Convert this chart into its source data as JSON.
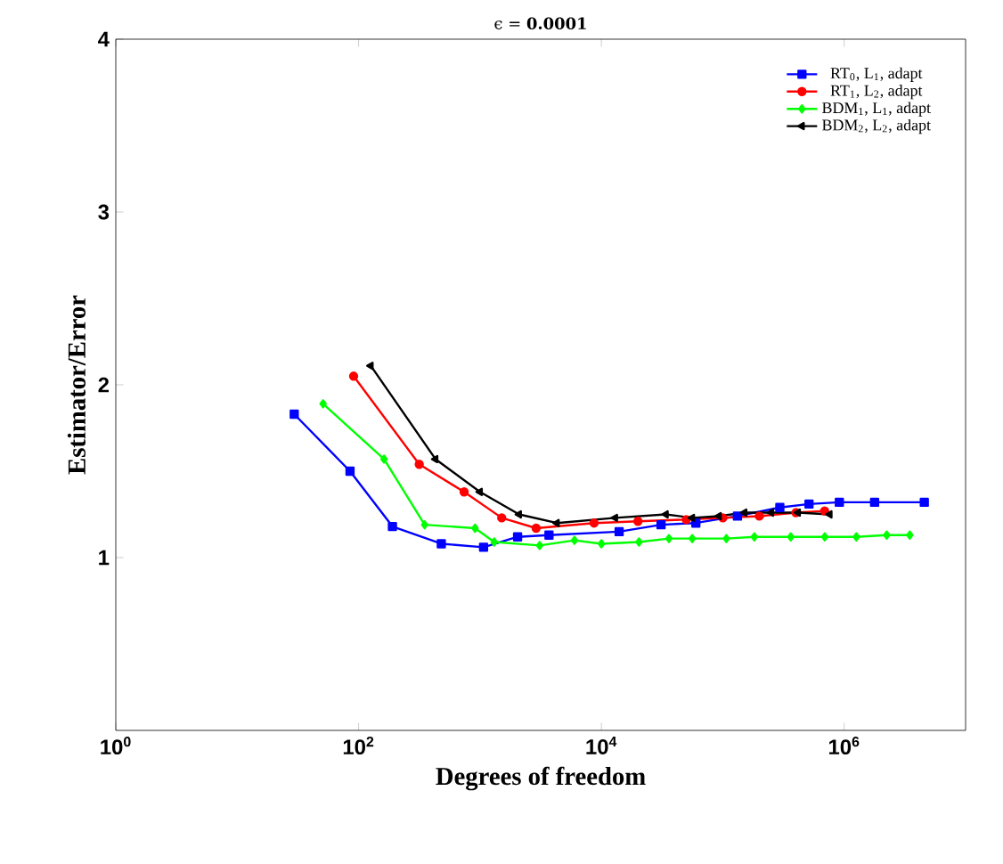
{
  "chart_data": {
    "type": "line",
    "title": "ϵ = **0.0001**",
    "xlabel": "Degrees of freedom",
    "ylabel": "Estimator/Error",
    "log": "x",
    "xlim": [
      1,
      10000000
    ],
    "ylim": [
      0,
      4
    ],
    "xticks": [
      {
        "value": 1,
        "label": "10$^{0}$"
      },
      {
        "value": 100,
        "label": "10$^{2}$"
      },
      {
        "value": 10000,
        "label": "10$^{4}$"
      },
      {
        "value": 1000000,
        "label": "10$^{6}$"
      }
    ],
    "yticks": [
      1,
      2,
      3,
      4
    ],
    "grid": false,
    "legend": "top right",
    "line_style": "solid",
    "series": [
      {
        "name": "RT$_{0}$, L$_{1}$, adapt",
        "color": "#0000ff",
        "marker": "square",
        "x": [
          29.5,
          85,
          190,
          480,
          1070,
          2040,
          3700,
          14000,
          31000,
          60000,
          132000,
          295000,
          513000,
          912000,
          1780000,
          4570000
        ],
        "values": [
          1.83,
          1.5,
          1.18,
          1.08,
          1.06,
          1.12,
          1.13,
          1.15,
          1.19,
          1.2,
          1.24,
          1.29,
          1.31,
          1.32,
          1.32,
          1.32
        ]
      },
      {
        "name": "RT$_{1}$, L$_{2}$, adapt",
        "color": "#ff0000",
        "marker": "circle",
        "x": [
          91,
          316,
          740,
          1510,
          2900,
          8700,
          20000,
          50000,
          100000,
          200000,
          400000,
          690000
        ],
        "values": [
          2.05,
          1.54,
          1.38,
          1.23,
          1.17,
          1.2,
          1.21,
          1.22,
          1.23,
          1.24,
          1.26,
          1.27
        ]
      },
      {
        "name": "BDM$_{1}$, L$_{1}$, adapt",
        "color": "#00ff00",
        "marker": "diamond",
        "x": [
          51,
          162,
          350,
          910,
          1310,
          3100,
          6000,
          10000,
          20400,
          36000,
          56000,
          107000,
          182000,
          363000,
          692000,
          1260000,
          2240000,
          3470000
        ],
        "values": [
          1.89,
          1.57,
          1.19,
          1.17,
          1.09,
          1.07,
          1.1,
          1.08,
          1.09,
          1.11,
          1.11,
          1.11,
          1.12,
          1.12,
          1.12,
          1.12,
          1.13,
          1.13
        ]
      },
      {
        "name": "BDM$_{2}$, L$_{2}$, adapt",
        "color": "#000000",
        "marker": "triangle",
        "x": [
          126,
          430,
          1000,
          2100,
          4300,
          13000,
          34000,
          56000,
          93000,
          151000,
          251000,
          417000,
          760000
        ],
        "values": [
          2.11,
          1.57,
          1.38,
          1.25,
          1.2,
          1.23,
          1.25,
          1.23,
          1.24,
          1.26,
          1.26,
          1.26,
          1.25
        ]
      }
    ]
  }
}
